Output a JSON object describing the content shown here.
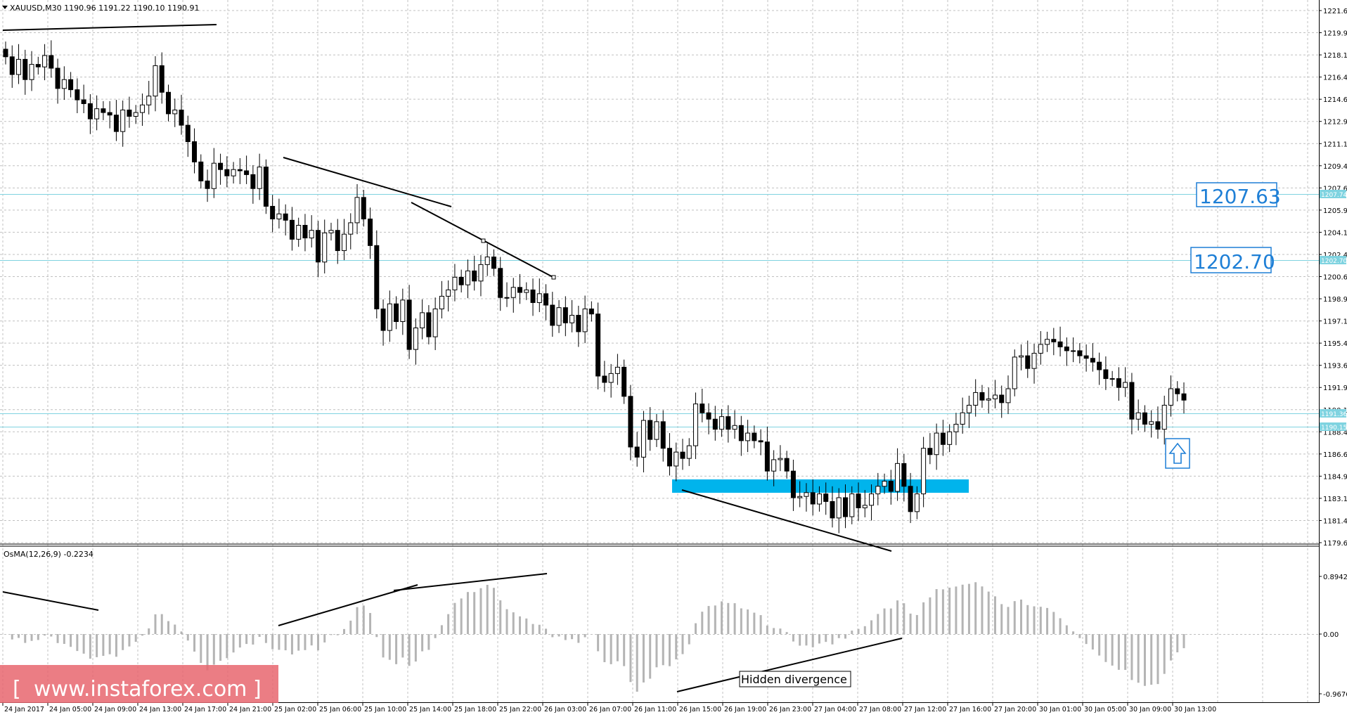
{
  "symbol_header": "XAUUSD,M30  1190.96 1191.22 1190.10 1190.91",
  "osma_header": "OsMA(12,26,9) -0.2234",
  "price_axis": {
    "ticks": [
      "1221.65",
      "1219.90",
      "1218.15",
      "1216.40",
      "1214.65",
      "1212.90",
      "1211.15",
      "1209.40",
      "1207.65",
      "1205.90",
      "1204.15",
      "1202.40",
      "1200.65",
      "1198.90",
      "1197.15",
      "1195.40",
      "1193.65",
      "1191.90",
      "1190.15",
      "1188.40",
      "1186.65",
      "1184.90",
      "1183.15",
      "1181.40",
      "1179.65"
    ],
    "tags": [
      "1207.74",
      "1202.70",
      "1191.36",
      "1190.15"
    ]
  },
  "osma_axis": {
    "ticks": [
      "0.8942",
      "0.00",
      "-0.9676"
    ]
  },
  "levels": {
    "upper": "1207.63",
    "lower": "1202.70"
  },
  "annotations": {
    "divergence": "Hidden divergence",
    "up_arrow": "up-arrow-icon"
  },
  "watermark": "www.instaforex.com",
  "time_axis": [
    "24 Jan 2017",
    "24 Jan 05:00",
    "24 Jan 09:00",
    "24 Jan 13:00",
    "24 Jan 17:00",
    "24 Jan 21:00",
    "25 Jan 02:00",
    "25 Jan 06:00",
    "25 Jan 10:00",
    "25 Jan 14:00",
    "25 Jan 18:00",
    "25 Jan 22:00",
    "26 Jan 03:00",
    "26 Jan 07:00",
    "26 Jan 11:00",
    "26 Jan 15:00",
    "26 Jan 19:00",
    "26 Jan 23:00",
    "27 Jan 04:00",
    "27 Jan 08:00",
    "27 Jan 12:00",
    "27 Jan 16:00",
    "27 Jan 20:00",
    "30 Jan 01:00",
    "30 Jan 05:00",
    "30 Jan 09:00",
    "30 Jan 13:00"
  ],
  "colors": {
    "level": "#7fd3e0",
    "zone": "#00b4ec",
    "grid": "#c0c0c0",
    "osma": "#b4b4b4",
    "watermark_bg": "#e8666e"
  },
  "chart_data": {
    "type": "candlestick",
    "title": "XAUUSD,M30",
    "ylim": [
      1179.65,
      1221.65
    ],
    "closes": [
      1218,
      1216.6,
      1217.8,
      1216.2,
      1217.4,
      1217.2,
      1218.1,
      1217.1,
      1215.5,
      1216.2,
      1215.4,
      1214.6,
      1214.3,
      1213.1,
      1213.9,
      1213.6,
      1213.4,
      1212.1,
      1213.8,
      1213.3,
      1213.6,
      1214.2,
      1214.9,
      1217.3,
      1215.2,
      1213.5,
      1213.8,
      1212.6,
      1211.3,
      1209.7,
      1208.2,
      1207.6,
      1209.6,
      1209.1,
      1208.6,
      1209.1,
      1209.0,
      1208.7,
      1207.6,
      1209.3,
      1206.2,
      1205.2,
      1205.6,
      1205.1,
      1203.6,
      1204.7,
      1203.7,
      1204.3,
      1201.8,
      1204.1,
      1204.3,
      1202.7,
      1204.0,
      1204.9,
      1206.9,
      1205.2,
      1203.1,
      1198.1,
      1196.4,
      1198.5,
      1197.1,
      1198.8,
      1194.9,
      1196.6,
      1197.8,
      1195.9,
      1198.1,
      1199.1,
      1199.6,
      1200.6,
      1200.0,
      1201.1,
      1200.3,
      1201.6,
      1202.2,
      1201.3,
      1199.0,
      1199.0,
      1199.8,
      1199.4,
      1199.6,
      1198.6,
      1199.3,
      1198.4,
      1196.8,
      1198.2,
      1197.0,
      1197.6,
      1196.3,
      1198.1,
      1197.7,
      1192.8,
      1192.3,
      1193.0,
      1193.5,
      1191.2,
      1187.2,
      1186.4,
      1189.3,
      1187.8,
      1189.2,
      1187.1,
      1185.7,
      1186.8,
      1186.3,
      1187.3,
      1190.6,
      1189.9,
      1189.4,
      1188.6,
      1189.6,
      1188.6,
      1188.9,
      1187.7,
      1188.3,
      1187.7,
      1187.6,
      1185.3,
      1186.2,
      1186.3,
      1185.3,
      1183.2,
      1183.3,
      1183.6,
      1182.7,
      1183.5,
      1182.9,
      1181.6,
      1183.2,
      1181.7,
      1183.5,
      1182.4,
      1182.6,
      1183.5,
      1184.1,
      1184.5,
      1183.7,
      1185.9,
      1184.1,
      1182.1,
      1183.5,
      1187.1,
      1186.6,
      1188.3,
      1187.4,
      1188.4,
      1189.0,
      1189.9,
      1190.5,
      1191.5,
      1190.9,
      1191.0,
      1191.3,
      1190.7,
      1191.8,
      1194.3,
      1194.4,
      1193.4,
      1194.6,
      1195.3,
      1195.7,
      1195.5,
      1195.1,
      1194.8,
      1194.8,
      1194.4,
      1194.2,
      1193.9,
      1193.3,
      1192.6,
      1192.6,
      1191.9,
      1192.3,
      1189.4,
      1189.9,
      1189.0,
      1189.2,
      1188.6,
      1190.5,
      1191.8,
      1191.4,
      1190.9
    ]
  }
}
